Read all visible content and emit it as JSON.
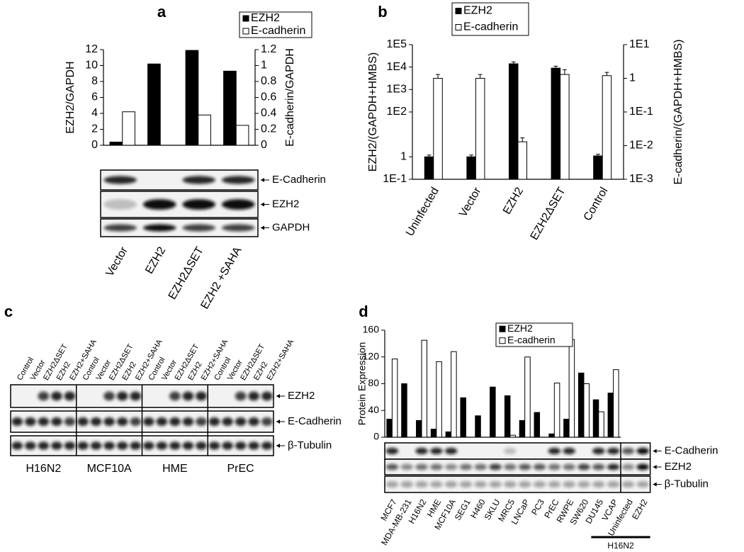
{
  "chart_data": [
    {
      "type": "bar",
      "panel": "a",
      "categories": [
        "Vector",
        "EZH2",
        "EZH2ΔSET",
        "EZH2 +SAHA"
      ],
      "series": [
        {
          "name": "EZH2",
          "color": "#000000",
          "values": [
            0.4,
            10.2,
            11.9,
            9.3
          ]
        },
        {
          "name": "E-cadherin",
          "color": "#ffffff",
          "axis": "y2",
          "values": [
            0.42,
            0.0,
            0.38,
            0.25
          ]
        }
      ],
      "ylabel": "EZH2/GAPDH",
      "y2label": "E-cadherin/GAPDH",
      "ylim": [
        0,
        12
      ],
      "yticks": [
        0,
        2,
        4,
        6,
        8,
        10,
        12
      ],
      "y2lim": [
        0,
        1.2
      ],
      "y2ticks": [
        0,
        0.2,
        0.4,
        0.6,
        0.8,
        1,
        1.2
      ]
    },
    {
      "type": "bar",
      "panel": "b",
      "categories": [
        "Uninfected",
        "Vector",
        "EZH2",
        "EZH2ΔSET",
        "Control"
      ],
      "series": [
        {
          "name": "EZH2",
          "color": "#000000",
          "values": [
            1,
            1,
            14000,
            9000,
            1.1
          ],
          "errors": [
            0.2,
            0.2,
            3000,
            2000,
            0.2
          ]
        },
        {
          "name": "E-cadherin",
          "color": "#ffffff",
          "axis": "y2",
          "values": [
            1.0,
            1.0,
            0.013,
            1.3,
            1.2
          ],
          "errors": [
            0.3,
            0.3,
            0.004,
            0.5,
            0.3
          ]
        }
      ],
      "ylabel": "EZH2/(GAPDH+HMBS)",
      "y2label": "E-cadherin/(GAPDH+HMBS)",
      "yscale": "log",
      "y2scale": "log",
      "ylim": [
        0.1,
        100000
      ],
      "yticks": [
        {
          "value": 100000,
          "label": "1E5"
        },
        {
          "value": 10000,
          "label": "1E4"
        },
        {
          "value": 1000,
          "label": "1E3"
        },
        {
          "value": 100,
          "label": "1E2"
        },
        1,
        {
          "value": 0.1,
          "label": "1E-1"
        }
      ],
      "y2lim": [
        0.001,
        10
      ],
      "y2ticks": [
        {
          "value": 10,
          "label": "1E1"
        },
        1,
        {
          "value": 0.1,
          "label": "1E-1"
        },
        {
          "value": 0.01,
          "label": "1E-2"
        },
        {
          "value": 0.001,
          "label": "1E-3"
        }
      ]
    },
    {
      "type": "bar",
      "panel": "d",
      "categories": [
        "MCF7",
        "MDA-MB-231",
        "H16N2",
        "HME",
        "MCF10A",
        "SEG1",
        "H460",
        "SKLU",
        "MRC5",
        "LNCaP",
        "PC3",
        "PrEC",
        "RWPE",
        "SW620",
        "DU145",
        "VCAP"
      ],
      "series": [
        {
          "name": "EZH2",
          "color": "#000000",
          "values": [
            27,
            80,
            25,
            12,
            8,
            59,
            32,
            75,
            62,
            25,
            37,
            5,
            27,
            96,
            56,
            66
          ]
        },
        {
          "name": "E-cadherin",
          "color": "#ffffff",
          "values": [
            117,
            0,
            145,
            113,
            128,
            0,
            0,
            0,
            3,
            120,
            0,
            81,
            146,
            80,
            38,
            101
          ]
        }
      ],
      "ylabel": "Protein Expression",
      "ylim": [
        0,
        160
      ],
      "yticks": [
        0,
        40,
        80,
        120,
        160
      ]
    }
  ],
  "blots": {
    "a": {
      "rows": [
        "E-Cadherin",
        "EZH2",
        "GAPDH"
      ]
    },
    "c": {
      "panel": "c",
      "lanes": [
        "Control",
        "Vector",
        "EZH2ΔSET",
        "EZH2",
        "EZH2+SAHA"
      ],
      "groups": [
        "H16N2",
        "MCF10A",
        "HME",
        "PrEC"
      ],
      "rows": [
        "EZH2",
        "E-Cadherin",
        "β-Tubulin"
      ]
    },
    "d": {
      "rows": [
        "E-Cadherin",
        "EZH2",
        "β-Tubulin"
      ],
      "lanes": [
        "Uninfected",
        "EZH2"
      ],
      "group": "H16N2"
    }
  }
}
